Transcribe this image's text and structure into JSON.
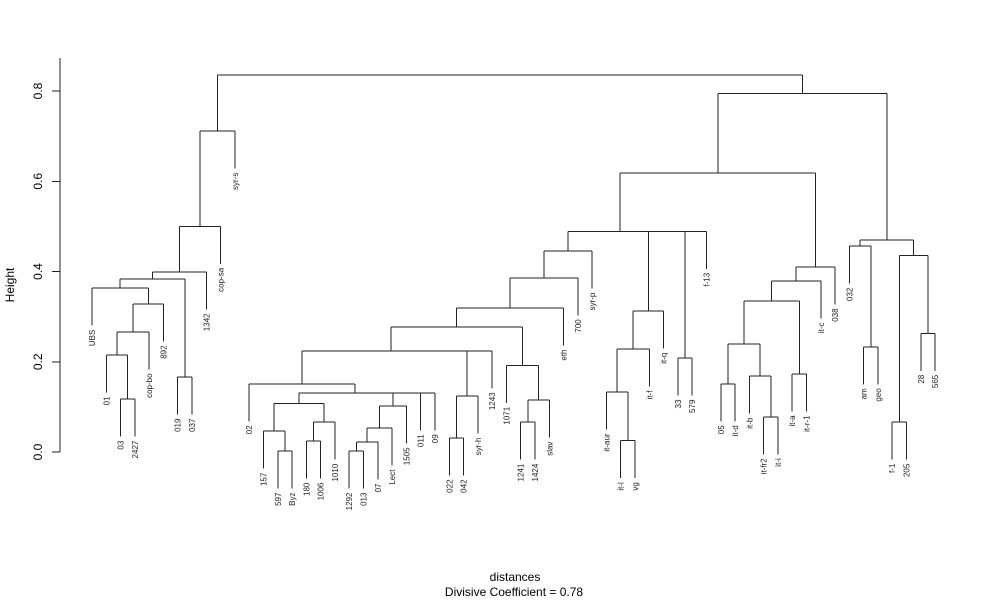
{
  "chart_data": {
    "type": "dendrogram",
    "title": "",
    "xlabel": "distances",
    "sub": "Divisive Coefficient =  0.78",
    "ylabel": "Height",
    "ylim": [
      0,
      0.85
    ],
    "yticks": [
      "0.0",
      "0.2",
      "0.4",
      "0.6",
      "0.8"
    ],
    "ytick_values": [
      0,
      0.2,
      0.4,
      0.6,
      0.8
    ],
    "hang": 0.083,
    "tree": {
      "h": 0.835,
      "c": [
        {
          "h": 0.711,
          "c": [
            {
              "h": 0.5,
              "c": [
                {
                  "h": 0.399,
                  "c": [
                    {
                      "h": 0.383,
                      "c": [
                        {
                          "h": 0.363,
                          "c": [
                            "UBS",
                            {
                              "h": 0.328,
                              "c": [
                                {
                                  "h": 0.266,
                                  "c": [
                                    {
                                      "h": 0.215,
                                      "c": [
                                        "01",
                                        {
                                          "h": 0.117,
                                          "c": [
                                            "03",
                                            "2427"
                                          ]
                                        }
                                      ]
                                    },
                                    "cop-bo"
                                  ]
                                },
                                "892"
                              ]
                            }
                          ]
                        },
                        {
                          "h": 0.166,
                          "c": [
                            "019",
                            "037"
                          ]
                        }
                      ]
                    },
                    "1342"
                  ]
                },
                "cop-sa"
              ]
            },
            "syr-s"
          ]
        },
        {
          "h": 0.795,
          "c": [
            {
              "h": 0.618,
              "c": [
                {
                  "h": 0.489,
                  "c": [
                    {
                      "h": 0.445,
                      "c": [
                        {
                          "h": 0.386,
                          "c": [
                            {
                              "h": 0.319,
                              "c": [
                                {
                                  "h": 0.277,
                                  "c": [
                                    {
                                      "h": 0.224,
                                      "c": [
                                        {
                                          "h": 0.151,
                                          "c": [
                                            "02",
                                            {
                                              "h": 0.131,
                                              "c": [
                                                {
                                                  "h": 0.108,
                                                  "c": [
                                                    {
                                                      "h": 0.046,
                                                      "c": [
                                                        "157",
                                                        {
                                                          "h": 0.002,
                                                          "c": [
                                                            "597",
                                                            "Byz"
                                                          ]
                                                        }
                                                      ]
                                                    },
                                                    {
                                                      "h": 0.066,
                                                      "c": [
                                                        {
                                                          "h": 0.024,
                                                          "c": [
                                                            "180",
                                                            "1006"
                                                          ]
                                                        },
                                                        "1010"
                                                      ]
                                                    }
                                                  ]
                                                },
                                                {
                                                  "h": 0.131,
                                                  "c": [
                                                    {
                                                      "h": 0.102,
                                                      "c": [
                                                        {
                                                          "h": 0.053,
                                                          "c": [
                                                            {
                                                              "h": 0.022,
                                                              "c": [
                                                                {
                                                                  "h": 0.002,
                                                                  "c": [
                                                                    "1292",
                                                                    "013"
                                                                  ]
                                                                },
                                                                "07"
                                                              ]
                                                            },
                                                            "Lect"
                                                          ]
                                                        },
                                                        "1505"
                                                      ]
                                                    },
                                                    {
                                                      "h": 0.131,
                                                      "c": [
                                                        "011",
                                                        "09"
                                                      ]
                                                    }
                                                  ]
                                                }
                                              ]
                                            }
                                          ]
                                        },
                                        {
                                          "h": 0.224,
                                          "c": [
                                            {
                                              "h": 0.124,
                                              "c": [
                                                {
                                                  "h": 0.031,
                                                  "c": [
                                                    "022",
                                                    "042"
                                                  ]
                                                },
                                                "syr-h"
                                              ]
                                            },
                                            "1243"
                                          ]
                                        }
                                      ]
                                    },
                                    {
                                      "h": 0.192,
                                      "c": [
                                        "1071",
                                        {
                                          "h": 0.115,
                                          "c": [
                                            {
                                              "h": 0.066,
                                              "c": [
                                                "1241",
                                                "1424"
                                              ]
                                            },
                                            "slav"
                                          ]
                                        }
                                      ]
                                    }
                                  ]
                                },
                                "eth"
                              ]
                            },
                            "700"
                          ]
                        },
                        "syr-p"
                      ]
                    },
                    {
                      "h": 0.489,
                      "c": [
                        {
                          "h": 0.312,
                          "c": [
                            {
                              "h": 0.228,
                              "c": [
                                {
                                  "h": 0.133,
                                  "c": [
                                    "it-aur",
                                    {
                                      "h": 0.025,
                                      "c": [
                                        "it-l",
                                        "vg"
                                      ]
                                    }
                                  ]
                                },
                                "it-f"
                              ]
                            },
                            "it-q"
                          ]
                        },
                        {
                          "h": 0.489,
                          "c": [
                            {
                              "h": 0.208,
                              "c": [
                                "33",
                                "579"
                              ]
                            },
                            "f-13"
                          ]
                        }
                      ]
                    }
                  ]
                },
                {
                  "h": 0.41,
                  "c": [
                    {
                      "h": 0.379,
                      "c": [
                        {
                          "h": 0.335,
                          "c": [
                            {
                              "h": 0.239,
                              "c": [
                                {
                                  "h": 0.151,
                                  "c": [
                                    "05",
                                    "it-d"
                                  ]
                                },
                                {
                                  "h": 0.168,
                                  "c": [
                                    "it-b",
                                    {
                                      "h": 0.078,
                                      "c": [
                                        "it-fr2",
                                        "it-i"
                                      ]
                                    }
                                  ]
                                }
                              ]
                            },
                            {
                              "h": 0.173,
                              "c": [
                                "it-a",
                                "it-r-1"
                              ]
                            }
                          ]
                        },
                        "it-c"
                      ]
                    },
                    "038"
                  ]
                }
              ]
            },
            {
              "h": 0.47,
              "c": [
                {
                  "h": 0.456,
                  "c": [
                    "032",
                    {
                      "h": 0.233,
                      "c": [
                        "am",
                        "geo"
                      ]
                    }
                  ]
                },
                {
                  "h": 0.436,
                  "c": [
                    {
                      "h": 0.066,
                      "c": [
                        "f-1",
                        "205"
                      ]
                    },
                    {
                      "h": 0.263,
                      "c": [
                        "28",
                        "565"
                      ]
                    }
                  ]
                }
              ]
            }
          ]
        }
      ]
    }
  }
}
